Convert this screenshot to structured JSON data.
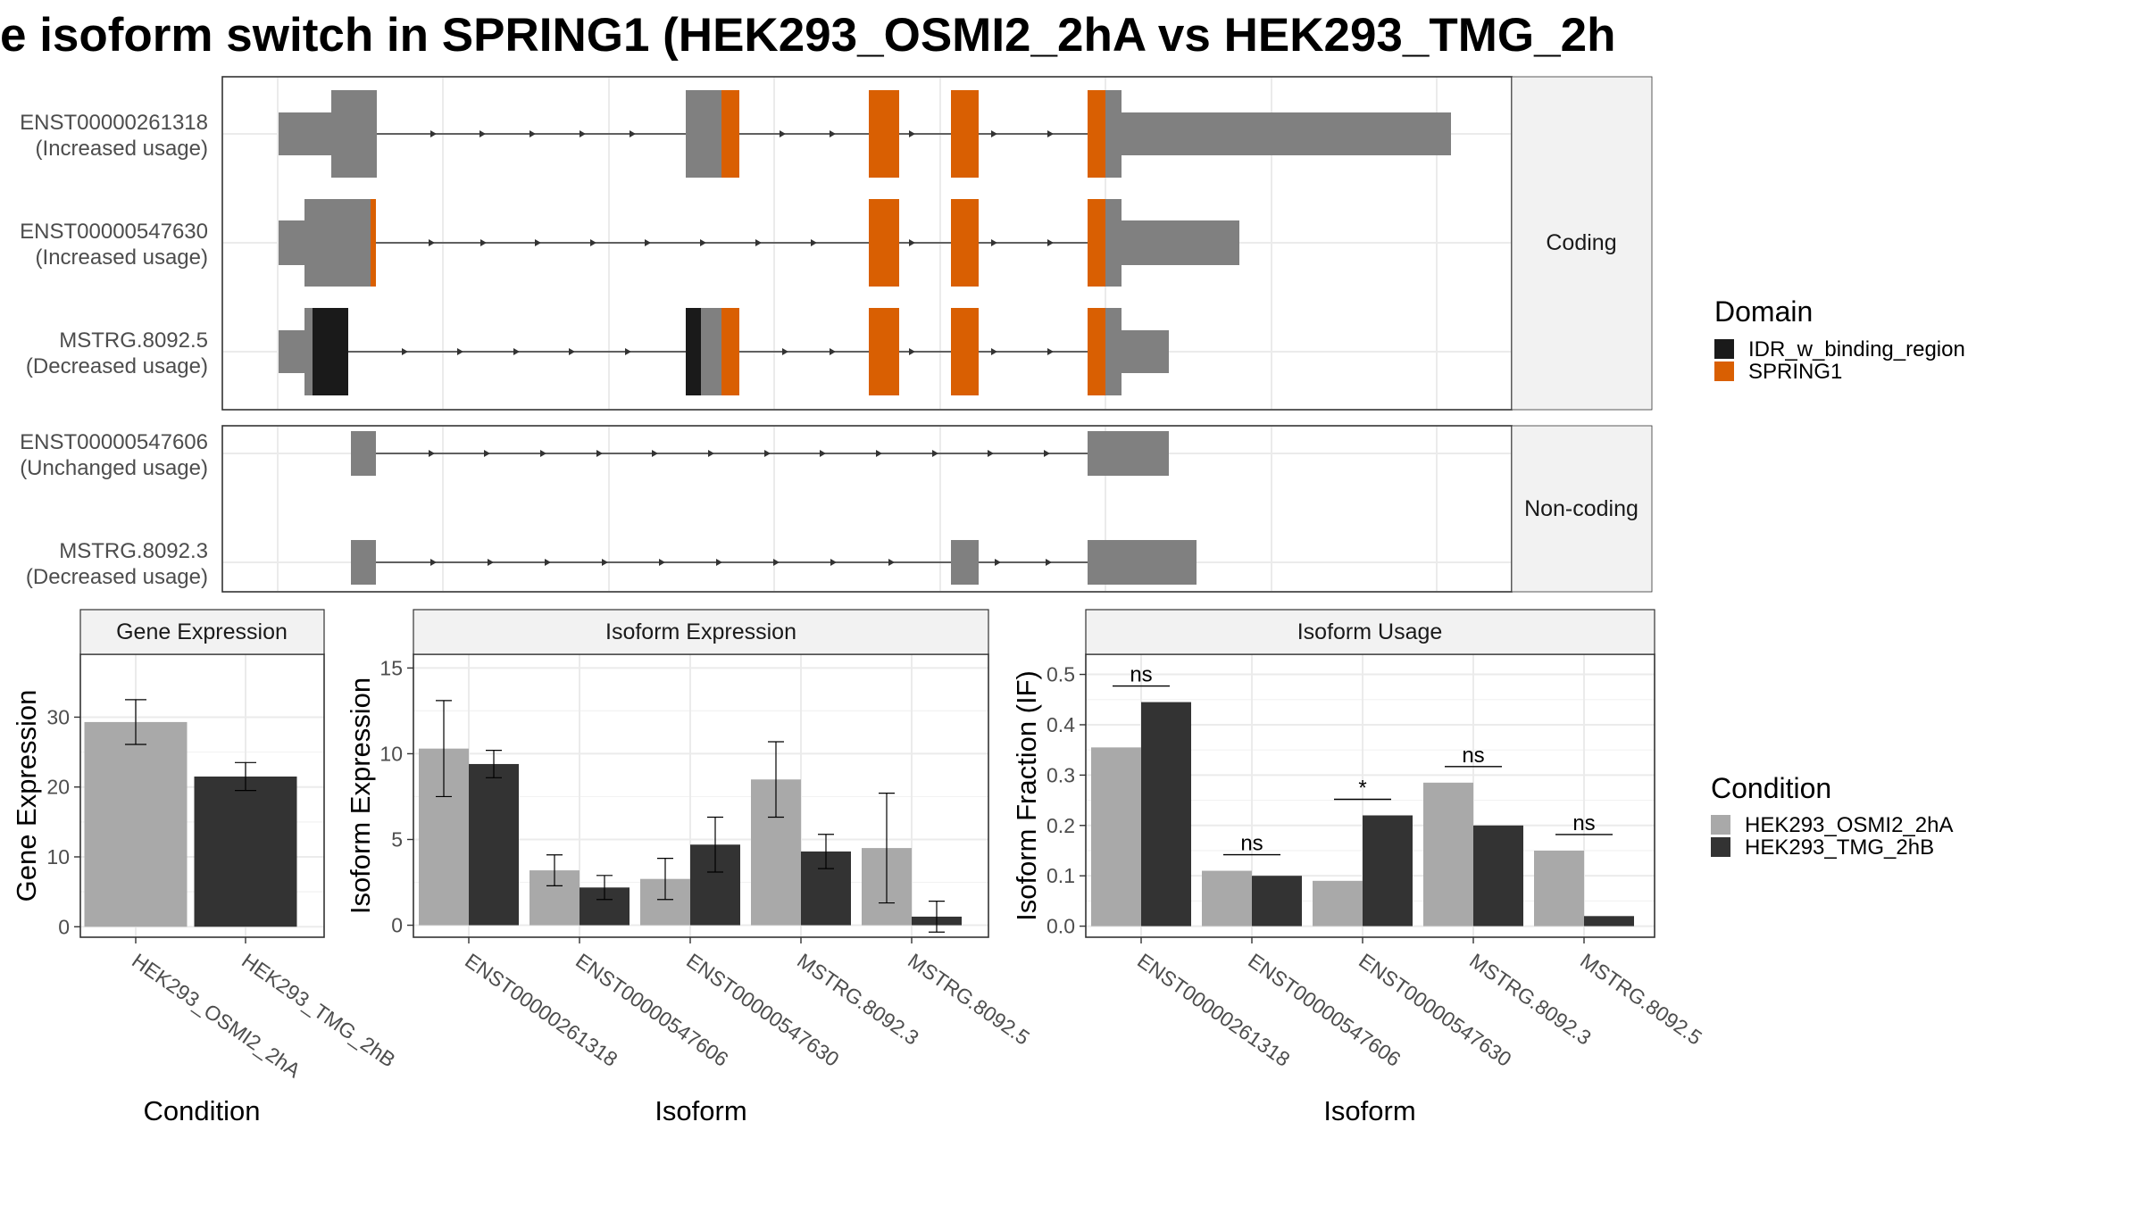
{
  "title": "e isoform switch in SPRING1 (HEK293_OSMI2_2hA vs HEK293_TMG_2h",
  "colors": {
    "exon": "#808080",
    "SPRING1": "#D95F02",
    "IDR_w_binding_region": "#1A1A1A",
    "HEK293_OSMI2_2hA": "#A9A9A9",
    "HEK293_TMG_2hB": "#333333",
    "grid": "#EBEBEB",
    "strip": "#F2F2F2",
    "panel_border": "#333333"
  },
  "structure": {
    "facets": [
      "Coding",
      "Non-coding"
    ],
    "transcripts": [
      {
        "name": "ENST00000261318",
        "usage": "(Increased usage)",
        "facet": "Coding"
      },
      {
        "name": "ENST00000547630",
        "usage": "(Increased usage)",
        "facet": "Coding"
      },
      {
        "name": "MSTRG.8092.5",
        "usage": "(Decreased usage)",
        "facet": "Coding"
      },
      {
        "name": "ENST00000547606",
        "usage": "(Unchanged usage)",
        "facet": "Non-coding"
      },
      {
        "name": "MSTRG.8092.3",
        "usage": "(Decreased usage)",
        "facet": "Non-coding"
      }
    ]
  },
  "legend_domain": {
    "title": "Domain",
    "items": [
      "IDR_w_binding_region",
      "SPRING1"
    ]
  },
  "legend_condition": {
    "title": "Condition",
    "items": [
      "HEK293_OSMI2_2hA",
      "HEK293_TMG_2hB"
    ]
  },
  "chart_data": [
    {
      "type": "bar",
      "title": "Gene Expression",
      "xlabel": "Condition",
      "ylabel": "Gene Expression",
      "ylim": [
        -1.5,
        39
      ],
      "yticks": [
        0,
        10,
        20,
        30
      ],
      "categories": [
        "HEK293_OSMI2_2hA",
        "HEK293_TMG_2hB"
      ],
      "values": [
        29.3,
        21.5
      ],
      "errors": [
        3.2,
        2.0
      ],
      "grid": true
    },
    {
      "type": "bar",
      "title": "Isoform Expression",
      "xlabel": "Isoform",
      "ylabel": "Isoform Expression",
      "ylim": [
        -0.7,
        15.8
      ],
      "yticks": [
        0,
        5,
        10,
        15
      ],
      "categories": [
        "ENST00000261318",
        "ENST00000547606",
        "ENST00000547630",
        "MSTRG.8092.3",
        "MSTRG.8092.5"
      ],
      "series": [
        {
          "name": "HEK293_OSMI2_2hA",
          "values": [
            10.3,
            3.2,
            2.7,
            8.5,
            4.5
          ],
          "errors": [
            2.8,
            0.9,
            1.2,
            2.2,
            3.2
          ]
        },
        {
          "name": "HEK293_TMG_2hB",
          "values": [
            9.4,
            2.2,
            4.7,
            4.3,
            0.5
          ],
          "errors": [
            0.8,
            0.7,
            1.6,
            1.0,
            0.9
          ]
        }
      ],
      "grid": true
    },
    {
      "type": "bar",
      "title": "Isoform Usage",
      "xlabel": "Isoform",
      "ylabel": "Isoform Fraction (IF)",
      "ylim": [
        -0.022,
        0.54
      ],
      "yticks": [
        0.0,
        0.1,
        0.2,
        0.3,
        0.4,
        0.5
      ],
      "categories": [
        "ENST00000261318",
        "ENST00000547606",
        "ENST00000547630",
        "MSTRG.8092.3",
        "MSTRG.8092.5"
      ],
      "series": [
        {
          "name": "HEK293_OSMI2_2hA",
          "values": [
            0.355,
            0.11,
            0.09,
            0.285,
            0.15
          ]
        },
        {
          "name": "HEK293_TMG_2hB",
          "values": [
            0.445,
            0.1,
            0.22,
            0.2,
            0.02
          ]
        }
      ],
      "significance": [
        "ns",
        "ns",
        "*",
        "ns",
        "ns"
      ],
      "grid": true
    }
  ]
}
